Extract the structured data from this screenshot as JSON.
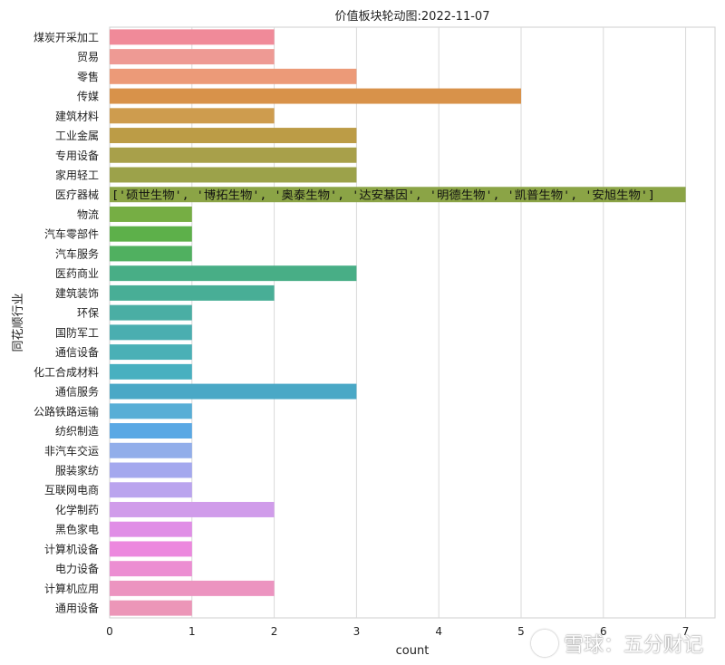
{
  "chart_data": {
    "type": "bar",
    "orientation": "horizontal",
    "title": "价值板块轮动图:2022-11-07",
    "xlabel": "count",
    "ylabel": "同花顺行业",
    "xlim": [
      0,
      7
    ],
    "x_ticks": [
      "0",
      "1",
      "2",
      "3",
      "4",
      "5",
      "6",
      "7"
    ],
    "grid": "vertical",
    "categories": [
      "煤炭开采加工",
      "贸易",
      "零售",
      "传媒",
      "建筑材料",
      "工业金属",
      "专用设备",
      "家用轻工",
      "医疗器械",
      "物流",
      "汽车零部件",
      "汽车服务",
      "医药商业",
      "建筑装饰",
      "环保",
      "国防军工",
      "通信设备",
      "化工合成材料",
      "通信服务",
      "公路铁路运输",
      "纺织制造",
      "非汽车交运",
      "服装家纺",
      "互联网电商",
      "化学制药",
      "黑色家电",
      "计算机设备",
      "电力设备",
      "计算机应用",
      "通用设备"
    ],
    "values": [
      2,
      2,
      3,
      5,
      2,
      3,
      3,
      3,
      7,
      1,
      1,
      1,
      3,
      2,
      1,
      1,
      1,
      1,
      3,
      1,
      1,
      1,
      1,
      1,
      2,
      1,
      1,
      1,
      2,
      1
    ],
    "colors": [
      "#f08a99",
      "#ee9a94",
      "#ec9a78",
      "#d8924a",
      "#ce9c4e",
      "#bc9c46",
      "#a8a04a",
      "#9ca24a",
      "#8ba446",
      "#76ae44",
      "#5db04a",
      "#50b060",
      "#48ae86",
      "#48ae96",
      "#4aaea4",
      "#4aaeb0",
      "#4ab0b6",
      "#48b0c0",
      "#4aa8c6",
      "#58aed6",
      "#5aa8e4",
      "#92aeea",
      "#a4a8ee",
      "#baa4ee",
      "#d09cea",
      "#e08ee6",
      "#ec88de",
      "#ec8ed2",
      "#ec94c0",
      "#ec96b8"
    ],
    "annotation": {
      "category": "医疗器械",
      "text": "['硕世生物', '博拓生物', '奥泰生物', '达安基因', '明德生物', '凯普生物', '安旭生物']"
    }
  },
  "watermark": {
    "text": "雪球：五分财记"
  }
}
